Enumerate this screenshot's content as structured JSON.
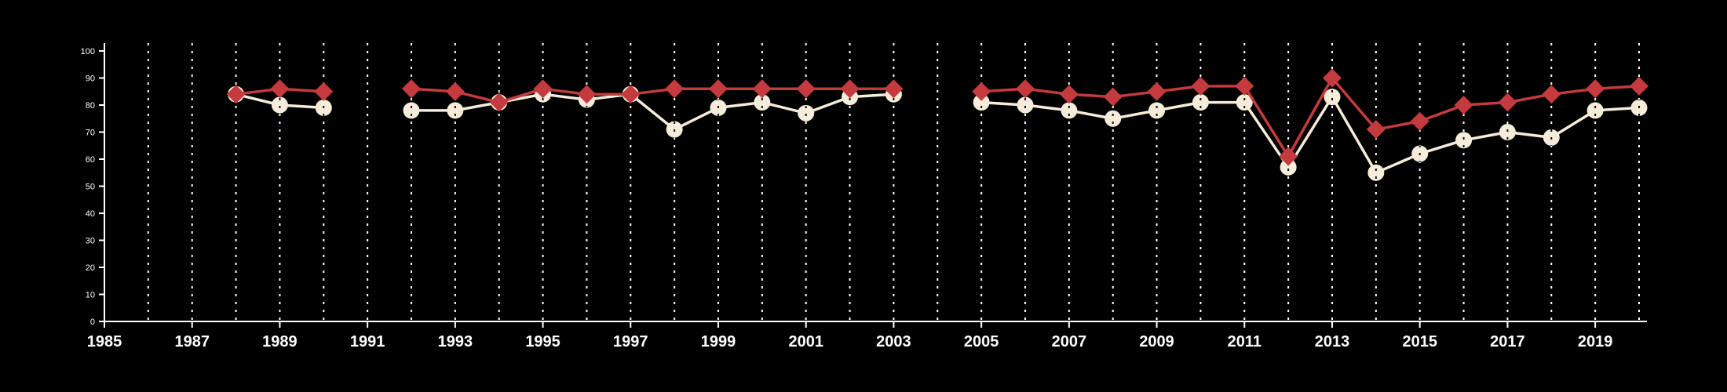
{
  "chart": {
    "background_color": "#000000",
    "axis_color": "#ffffff",
    "gridline_color": "#ffffff"
  },
  "chart_data": {
    "type": "line",
    "title": "",
    "xlabel": "",
    "ylabel": "",
    "grid": "vertical-dashed",
    "legend_position": "none",
    "xlim": [
      1985,
      2020
    ],
    "ylim": [
      0,
      100
    ],
    "x_tick_labels": [
      1985,
      1987,
      1989,
      1991,
      1993,
      1995,
      1997,
      1999,
      2001,
      2003,
      2005,
      2007,
      2009,
      2011,
      2013,
      2015,
      2017,
      2019
    ],
    "y_tick_labels": [
      0,
      10,
      20,
      30,
      40,
      50,
      60,
      70,
      80,
      90,
      100
    ],
    "gridline_years_start": 1986,
    "gridline_years_end": 2020,
    "x": [
      1985,
      1986,
      1987,
      1988,
      1989,
      1990,
      1991,
      1992,
      1993,
      1994,
      1995,
      1996,
      1997,
      1998,
      1999,
      2000,
      2001,
      2002,
      2003,
      2004,
      2005,
      2006,
      2007,
      2008,
      2009,
      2010,
      2011,
      2012,
      2013,
      2014,
      2015,
      2016,
      2017,
      2018,
      2019,
      2020
    ],
    "series": [
      {
        "name": "cream-circle-series",
        "color": "#F5ECD9",
        "marker": "circle",
        "values": [
          null,
          null,
          null,
          84,
          80,
          79,
          null,
          78,
          78,
          81,
          84,
          82,
          84,
          71,
          79,
          81,
          77,
          83,
          84,
          null,
          81,
          80,
          78,
          75,
          78,
          81,
          81,
          57,
          83,
          55,
          62,
          67,
          70,
          68,
          78,
          79
        ]
      },
      {
        "name": "red-diamond-series",
        "color": "#C43A3E",
        "marker": "diamond",
        "values": [
          null,
          null,
          null,
          84,
          86,
          85,
          null,
          86,
          85,
          81,
          86,
          84,
          84,
          86,
          86,
          86,
          86,
          86,
          86,
          null,
          85,
          86,
          84,
          83,
          85,
          87,
          87,
          61,
          90,
          71,
          74,
          80,
          81,
          84,
          86,
          87
        ]
      }
    ]
  }
}
